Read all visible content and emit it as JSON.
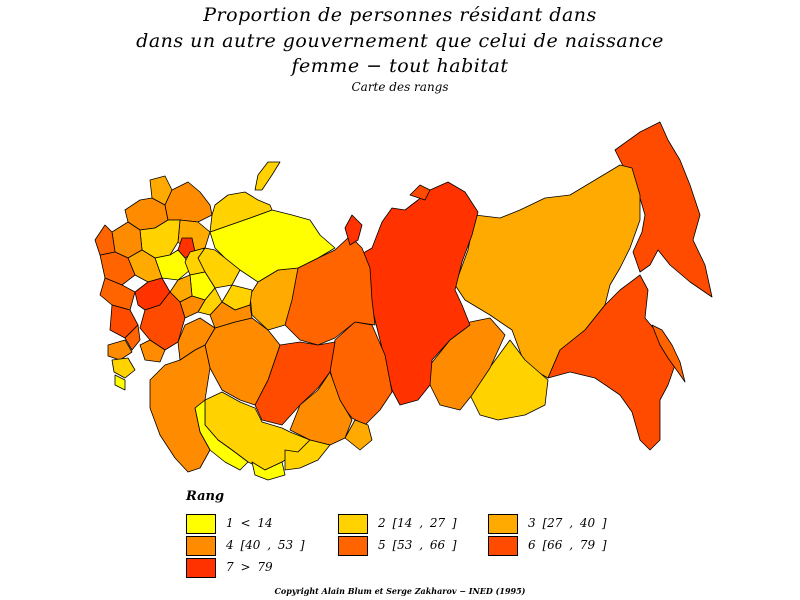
{
  "title": {
    "line1": "Proportion de personnes résidant dans",
    "line2": "dans un autre gouvernement que celui de naissance",
    "line3": "femme − tout habitat"
  },
  "subtitle": "Carte des rangs",
  "legend": {
    "title": "Rang",
    "items": [
      {
        "label": "1  <  14",
        "color": "#ffff00"
      },
      {
        "label": "2 [14 ,  27 ]",
        "color": "#ffd200"
      },
      {
        "label": "3 [27 ,  40 ]",
        "color": "#ffaa00"
      },
      {
        "label": "4 [40 ,  53 ]",
        "color": "#ff8c00"
      },
      {
        "label": "5 [53 ,  66 ]",
        "color": "#ff6400"
      },
      {
        "label": "6 [66 ,  79 ]",
        "color": "#ff4b00"
      },
      {
        "label": "7  >  79",
        "color": "#ff3200"
      }
    ]
  },
  "copyright": "Copyright Alain Blum et Serge Zakharov − INED (1995)"
}
